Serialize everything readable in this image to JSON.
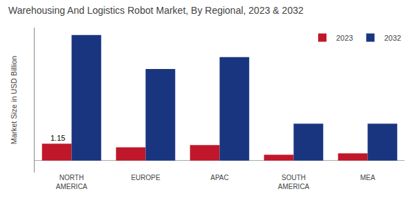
{
  "chart_data": {
    "type": "bar",
    "title": "Warehousing And Logistics Robot Market, By Regional, 2023 & 2032",
    "ylabel": "Market Size in USD Billion",
    "categories": [
      "NORTH\nAMERICA",
      "EUROPE",
      "APAC",
      "SOUTH\nAMERICA",
      "MEA"
    ],
    "series": [
      {
        "name": "2023",
        "color": "#c0182a",
        "values": [
          1.15,
          0.9,
          1.05,
          0.4,
          0.5
        ]
      },
      {
        "name": "2032",
        "color": "#1a3580",
        "values": [
          8.5,
          6.2,
          7.0,
          2.5,
          2.5
        ]
      }
    ],
    "ylim": [
      -0.8,
      9.0
    ],
    "yticks": [],
    "grid": false,
    "legend": "upper right",
    "tick_labels": "x",
    "annotations": [
      {
        "text": "1.15",
        "x": "NORTH\nAMERICA",
        "y": 1.15
      }
    ]
  }
}
